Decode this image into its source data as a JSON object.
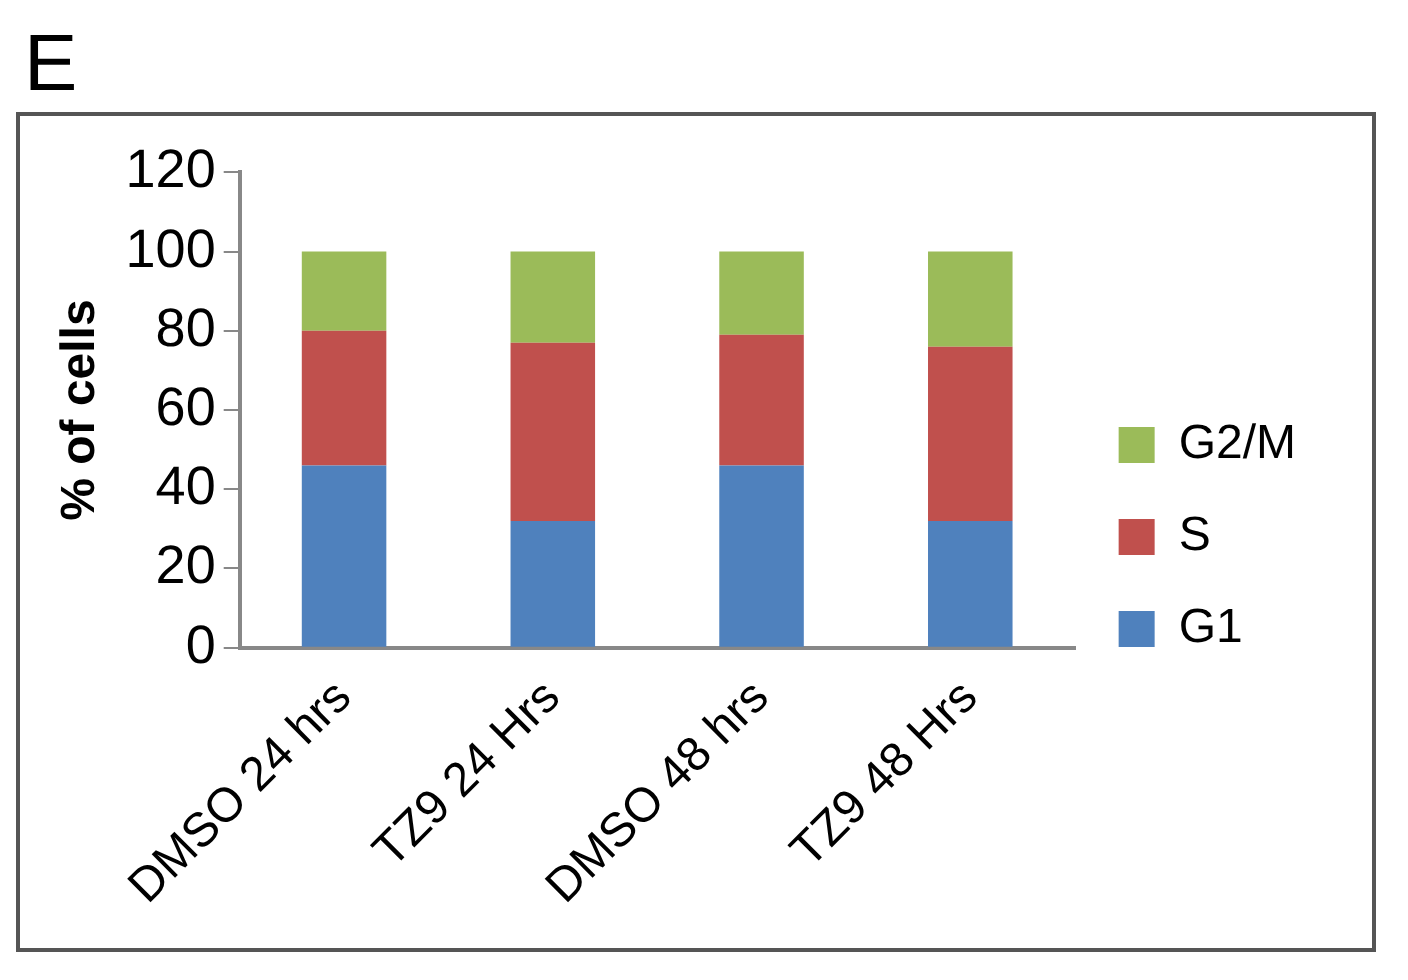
{
  "chart_data": {
    "type": "bar",
    "title": "E",
    "ylabel": "% of cells",
    "categories": [
      "DMSO 24 hrs",
      "TZ9 24 Hrs",
      "DMSO 48 hrs",
      "TZ9 48 Hrs"
    ],
    "series": [
      {
        "name": "G1",
        "color": "#4f81bd",
        "values": [
          46,
          32,
          46,
          32
        ]
      },
      {
        "name": "S",
        "color": "#c0504d",
        "values": [
          34,
          45,
          33,
          44
        ]
      },
      {
        "name": "G2/M",
        "color": "#9bbb59",
        "values": [
          20,
          23,
          21,
          24
        ]
      }
    ],
    "stacked": true,
    "ylim": [
      0,
      120
    ],
    "yticks": [
      0,
      20,
      40,
      60,
      80,
      100,
      120
    ],
    "grid": false,
    "legend": "right"
  }
}
